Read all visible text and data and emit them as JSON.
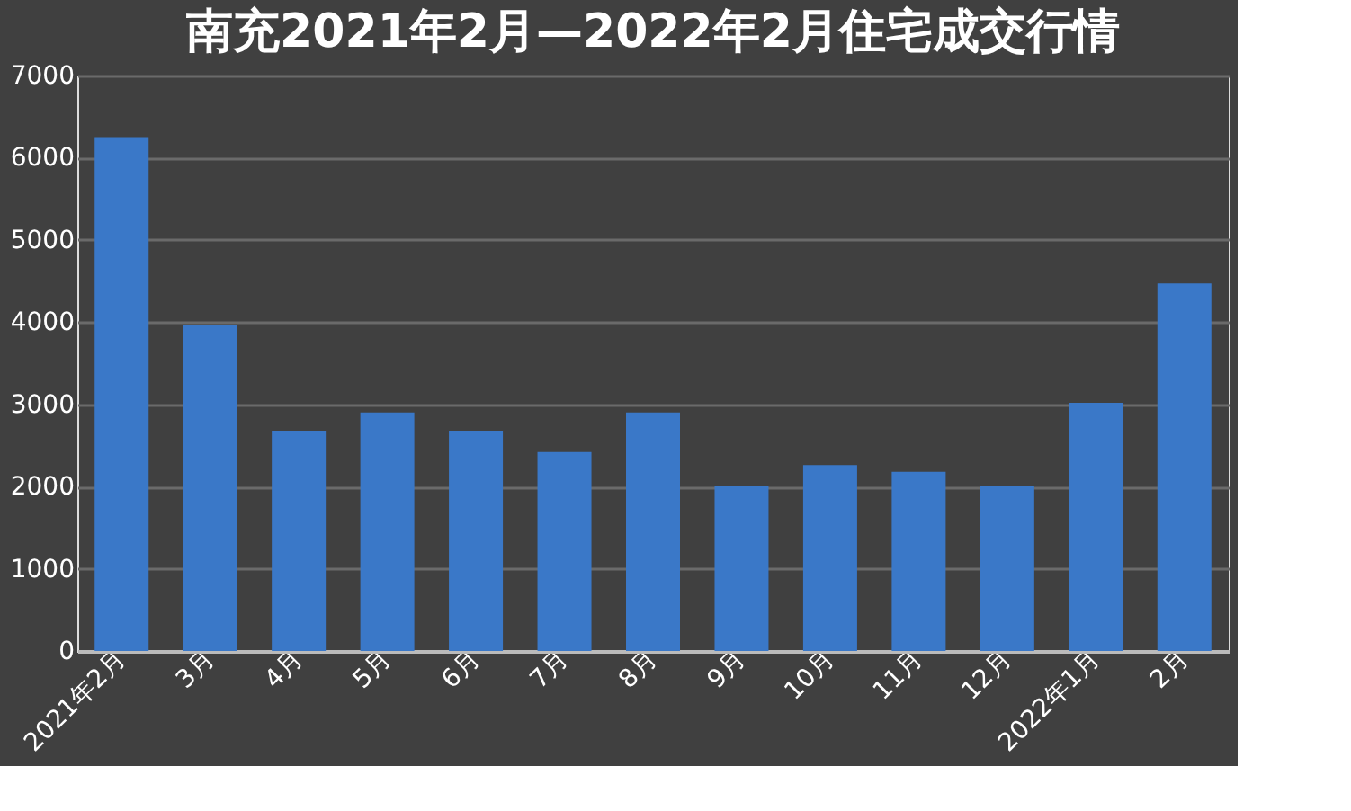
{
  "chart_data": {
    "type": "bar",
    "title": "南充2021年2月—2022年2月住宅成交行情",
    "categories": [
      "2021年2月",
      "3月",
      "4月",
      "5月",
      "6月",
      "7月",
      "8月",
      "9月",
      "10月",
      "11月",
      "12月",
      "2022年1月",
      "2月"
    ],
    "values": [
      6250,
      3960,
      2680,
      2900,
      2680,
      2420,
      2900,
      2010,
      2260,
      2180,
      2010,
      3020,
      4470
    ],
    "color": "#3a78c8",
    "ylim": [
      0,
      7000
    ],
    "yticks": [
      0,
      1000,
      2000,
      3000,
      4000,
      5000,
      6000,
      7000
    ],
    "grid": "y"
  }
}
